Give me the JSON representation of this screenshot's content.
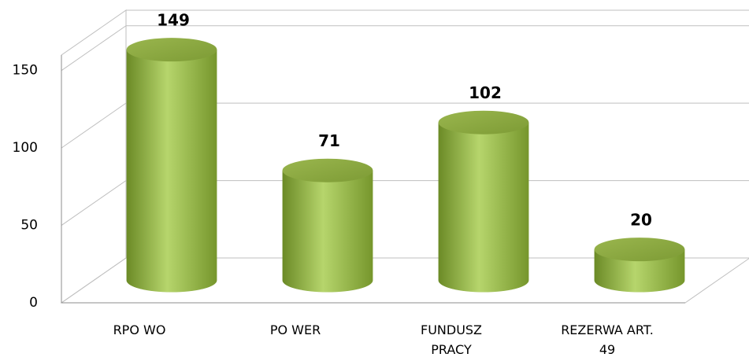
{
  "chart_data": {
    "type": "bar",
    "categories": [
      "RPO WO",
      "PO WER",
      "FUNDUSZ PRACY",
      "REZERWA ART. 49"
    ],
    "values": [
      149,
      71,
      102,
      20
    ],
    "color": "#9bbb59",
    "ylim": [
      0,
      160
    ],
    "yticks": [
      0,
      50,
      100,
      150
    ],
    "grid": true
  }
}
